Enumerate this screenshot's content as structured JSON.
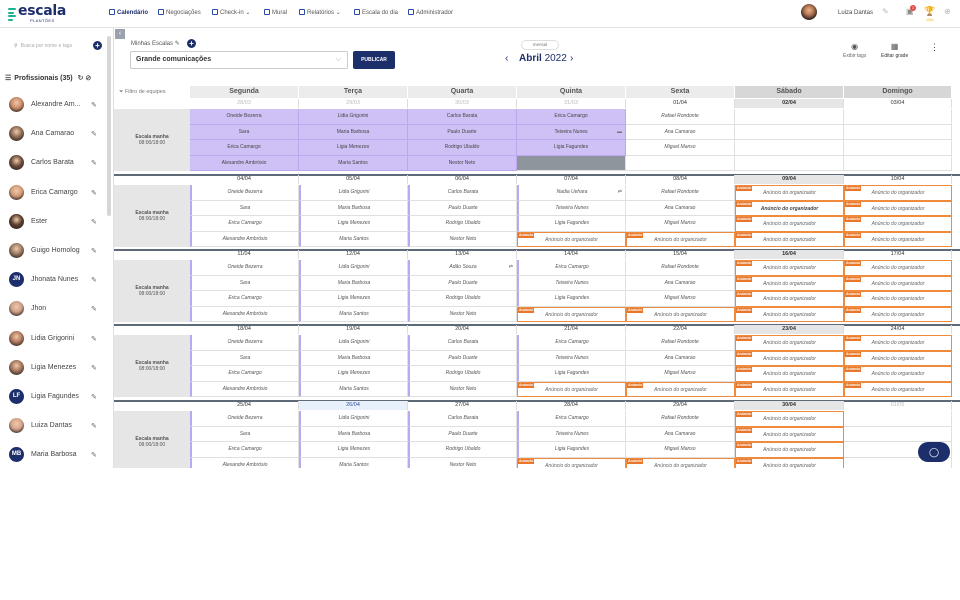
{
  "app": {
    "name": "escala",
    "sub": "PLANTÕES"
  },
  "nav": [
    {
      "label": "Calendário",
      "icon": "calendar-icon",
      "active": true
    },
    {
      "label": "Negociações",
      "icon": "swap-icon",
      "active": false
    },
    {
      "label": "Check-in",
      "icon": "clock-icon",
      "active": false
    },
    {
      "label": "Mural",
      "icon": "board-icon",
      "active": false
    },
    {
      "label": "Relatórios",
      "icon": "chart-icon",
      "active": false
    },
    {
      "label": "Escala do dia",
      "icon": "list-icon",
      "active": false
    },
    {
      "label": "Administrador",
      "icon": "gear-icon",
      "active": false
    }
  ],
  "user": {
    "name": "Luiza Dantas",
    "notifications": "1",
    "award_label": "100x"
  },
  "sidebar": {
    "search_placeholder": "Busca por nome e tags",
    "header": "Profissionais (35)",
    "professionals": [
      {
        "name": "Alexandre Am...",
        "avatar": "photo"
      },
      {
        "name": "Ana Camarao",
        "avatar": "photo"
      },
      {
        "name": "Carlos Barata",
        "avatar": "photo"
      },
      {
        "name": "Erica Camargo",
        "avatar": "photo"
      },
      {
        "name": "Ester",
        "avatar": "photo"
      },
      {
        "name": "Guigo Homolog",
        "avatar": "photo"
      },
      {
        "name": "Jhonata Nunes",
        "avatar": "JN"
      },
      {
        "name": "Jhon",
        "avatar": "photo"
      },
      {
        "name": "Lidia Grigorini",
        "avatar": "photo"
      },
      {
        "name": "Ligia Menezes",
        "avatar": "photo"
      },
      {
        "name": "Ligia Fagundes",
        "avatar": "LF"
      },
      {
        "name": "Luiza Dantas",
        "avatar": "photo"
      },
      {
        "name": "Maria Barbosa",
        "avatar": "MB"
      }
    ]
  },
  "toolbar": {
    "my_scales_label": "Minhas Escalas",
    "selected_scale": "Grande comunicações",
    "publish_label": "PUBLICAR",
    "view_mode": "mensal",
    "month": "Abril",
    "year": "2022",
    "show_tags_label": "Exibir tags",
    "edit_grid_label": "Editar grade"
  },
  "calendar": {
    "filter_label": "Filtro de equipes",
    "weekdays": [
      "Segunda",
      "Terça",
      "Quarta",
      "Quinta",
      "Sexta",
      "Sábado",
      "Domingo"
    ],
    "shift_label": "Escala manha",
    "shift_time": "08:00/18:00",
    "announcement_tag": "Anúncio",
    "announcement_text": "Anúncio do organizador",
    "weeks": [
      {
        "dates": [
          "28/03",
          "29/03",
          "30/03",
          "31/03",
          "01/04",
          "02/04",
          "03/04"
        ],
        "rows": [
          [
            "Oneide Bezerra",
            "Lidia Grigorini",
            "Carlos Barata",
            "Erica Camargo",
            "Rafael Rondonte",
            "",
            ""
          ],
          [
            "Sara",
            "Maria Barbosa",
            "Paulo Duarte",
            "Teixeira Nunes",
            "Ana Camarao",
            "",
            ""
          ],
          [
            "Erica Camargo",
            "Ligia Menezes",
            "Rodrigo Ubaldo",
            "Ligia Fagundes",
            "Miguel Manso",
            "",
            ""
          ],
          [
            "Alexandre Ambrósio",
            "Maria Santos",
            "Nestor Neto",
            "",
            "",
            "",
            ""
          ]
        ]
      },
      {
        "dates": [
          "04/04",
          "05/04",
          "06/04",
          "07/04",
          "08/04",
          "09/04",
          "10/04"
        ],
        "rows": [
          [
            "Oneide Bezerra",
            "Lidia Grigorini",
            "Carlos Barata",
            "Nadia Uehara",
            "Rafael Rondonte",
            "Anúncio do organizador",
            "Anúncio do organizador"
          ],
          [
            "Sara",
            "Maria Barbosa",
            "Paulo Duarte",
            "Teixeira Nunes",
            "Ana Camarao",
            "Anúncio do organizador",
            "Anúncio do organizador"
          ],
          [
            "Erica Camargo",
            "Ligia Menezes",
            "Rodrigo Ubaldo",
            "Ligia Fagundes",
            "Miguel Manso",
            "Anúncio do organizador",
            "Anúncio do organizador"
          ],
          [
            "Alexandre Ambrósio",
            "Maria Santos",
            "Nestor Neto",
            "Anúncio do organizador",
            "Anúncio do organizador",
            "Anúncio do organizador",
            "Anúncio do organizador"
          ]
        ]
      },
      {
        "dates": [
          "11/04",
          "12/04",
          "13/04",
          "14/04",
          "15/04",
          "16/04",
          "17/04"
        ],
        "rows": [
          [
            "Oneide Bezerra",
            "Lidia Grigorini",
            "Adão Souza",
            "Erica Camargo",
            "Rafael Rondonte",
            "Anúncio do organizador",
            "Anúncio do organizador"
          ],
          [
            "Sara",
            "Maria Barbosa",
            "Paulo Duarte",
            "Teixeira Nunes",
            "Ana Camarao",
            "Anúncio do organizador",
            "Anúncio do organizador"
          ],
          [
            "Erica Camargo",
            "Ligia Menezes",
            "Rodrigo Ubaldo",
            "Ligia Fagundes",
            "Miguel Manso",
            "Anúncio do organizador",
            "Anúncio do organizador"
          ],
          [
            "Alexandre Ambrósio",
            "Maria Santos",
            "Nestor Neto",
            "Anúncio do organizador",
            "Anúncio do organizador",
            "Anúncio do organizador",
            "Anúncio do organizador"
          ]
        ]
      },
      {
        "dates": [
          "18/04",
          "19/04",
          "20/04",
          "21/04",
          "22/04",
          "23/04",
          "24/04"
        ],
        "rows": [
          [
            "Oneide Bezerra",
            "Lidia Grigorini",
            "Carlos Barata",
            "Erica Camargo",
            "Rafael Rondonte",
            "Anúncio do organizador",
            "Anúncio do organizador"
          ],
          [
            "Sara",
            "Maria Barbosa",
            "Paulo Duarte",
            "Teixeira Nunes",
            "Ana Camarao",
            "Anúncio do organizador",
            "Anúncio do organizador"
          ],
          [
            "Erica Camargo",
            "Ligia Menezes",
            "Rodrigo Ubaldo",
            "Ligia Fagundes",
            "Miguel Manso",
            "Anúncio do organizador",
            "Anúncio do organizador"
          ],
          [
            "Alexandre Ambrósio",
            "Maria Santos",
            "Nestor Neto",
            "Anúncio do organizador",
            "Anúncio do organizador",
            "Anúncio do organizador",
            "Anúncio do organizador"
          ]
        ]
      },
      {
        "dates": [
          "25/04",
          "26/04",
          "27/04",
          "28/04",
          "29/04",
          "30/04",
          "01/05"
        ],
        "rows": [
          [
            "Oneide Bezerra",
            "Lidia Grigorini",
            "Carlos Barata",
            "Erica Camargo",
            "Rafael Rondonte",
            "Anúncio do organizador",
            ""
          ],
          [
            "Sara",
            "Maria Barbosa",
            "Paulo Duarte",
            "Teixeira Nunes",
            "Ana Camarao",
            "Anúncio do organizador",
            ""
          ],
          [
            "Erica Camargo",
            "Ligia Menezes",
            "Rodrigo Ubaldo",
            "Ligia Fagundes",
            "Miguel Manso",
            "Anúncio do organizador",
            ""
          ],
          [
            "Alexandre Ambrósio",
            "Maria Santos",
            "Nestor Neto",
            "Anúncio do organizador",
            "Anúncio do organizador",
            "Anúncio do organizador",
            ""
          ]
        ]
      }
    ]
  },
  "colors": {
    "brand": "#1d2f6b",
    "accent": "#1ab394",
    "published": "#cfc1f5",
    "announcement": "#e8762b"
  }
}
